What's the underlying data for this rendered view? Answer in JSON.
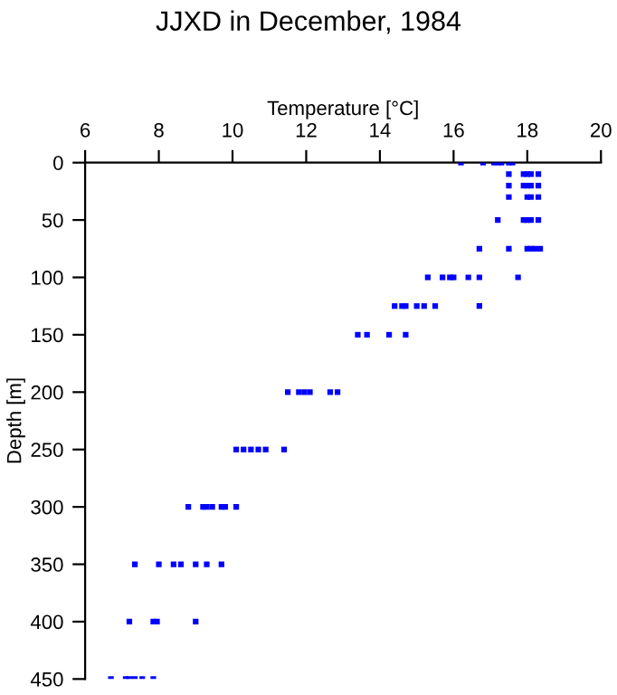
{
  "chart_data": {
    "type": "scatter",
    "title": "JJXD in December, 1984",
    "xlabel": "Temperature [°C]",
    "ylabel": "Depth [m]",
    "xlim": [
      6,
      20
    ],
    "xticks": [
      6,
      8,
      10,
      12,
      14,
      16,
      18,
      20
    ],
    "ylim": [
      450,
      0
    ],
    "yticks": [
      0,
      50,
      100,
      150,
      200,
      250,
      300,
      350,
      400,
      450
    ],
    "marker": "square",
    "grid": false,
    "legend": false,
    "series": [
      {
        "color": "#0000ff",
        "x": [
          16.2,
          16.8,
          17.1,
          17.2,
          17.3,
          17.5,
          17.6,
          17.5,
          17.9,
          18.0,
          18.1,
          18.3,
          17.5,
          17.9,
          18.0,
          18.1,
          18.3,
          17.5,
          18.0,
          18.1,
          18.3,
          17.2,
          17.9,
          18.0,
          18.1,
          18.3,
          16.7,
          17.5,
          18.0,
          18.1,
          18.2,
          18.35,
          15.3,
          15.7,
          15.9,
          16.0,
          16.4,
          16.7,
          17.75,
          14.4,
          14.6,
          14.7,
          15.0,
          15.2,
          15.5,
          16.7,
          13.4,
          13.65,
          14.25,
          14.7,
          11.5,
          11.8,
          11.95,
          12.1,
          12.65,
          12.85,
          10.1,
          10.3,
          10.5,
          10.7,
          10.9,
          11.4,
          8.8,
          9.2,
          9.3,
          9.45,
          9.7,
          9.8,
          10.1,
          7.35,
          8.0,
          8.4,
          8.6,
          9.0,
          9.3,
          9.7,
          7.2,
          7.85,
          7.95,
          9.0,
          6.7,
          7.1,
          7.2,
          7.35,
          7.55,
          7.85
        ],
        "values": [
          0,
          0,
          0,
          0,
          0,
          0,
          0,
          10,
          10,
          10,
          10,
          10,
          20,
          20,
          20,
          20,
          20,
          30,
          30,
          30,
          30,
          50,
          50,
          50,
          50,
          50,
          75,
          75,
          75,
          75,
          75,
          75,
          100,
          100,
          100,
          100,
          100,
          100,
          100,
          125,
          125,
          125,
          125,
          125,
          125,
          125,
          150,
          150,
          150,
          150,
          200,
          200,
          200,
          200,
          200,
          200,
          250,
          250,
          250,
          250,
          250,
          250,
          300,
          300,
          300,
          300,
          300,
          300,
          300,
          350,
          350,
          350,
          350,
          350,
          350,
          350,
          400,
          400,
          400,
          400,
          450,
          450,
          450,
          450,
          450,
          450
        ]
      }
    ]
  }
}
